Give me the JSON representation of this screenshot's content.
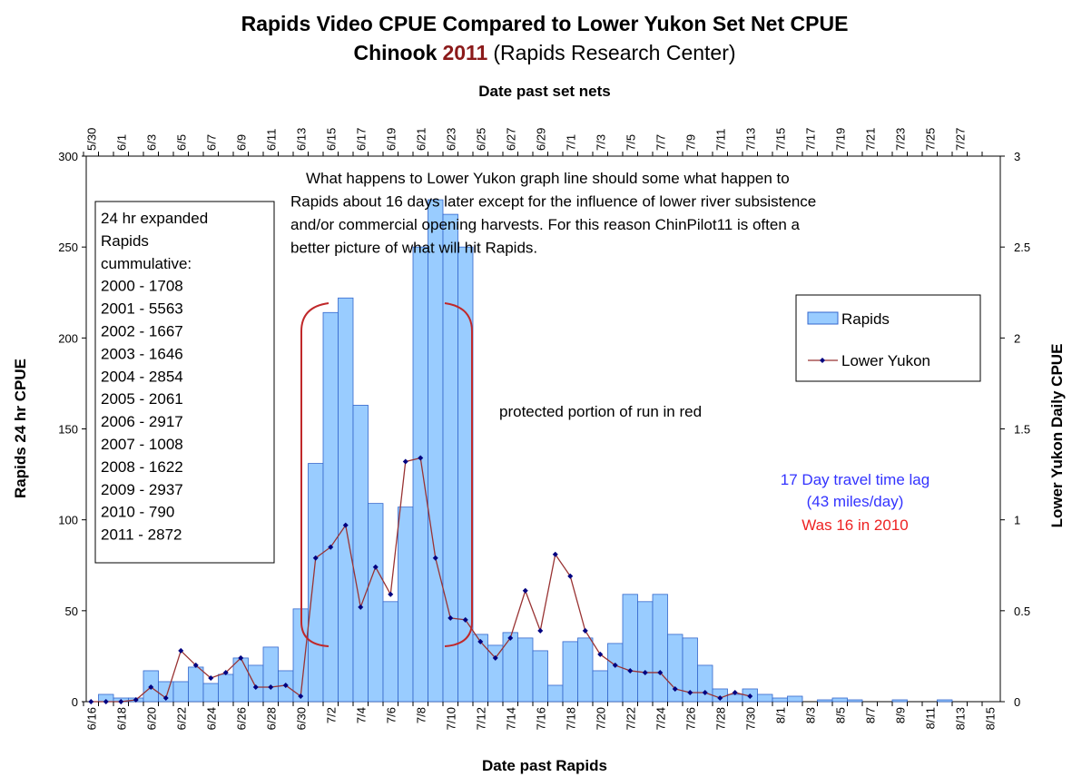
{
  "chart_data": {
    "type": "bar",
    "title": "Rapids Video CPUE Compared to Lower Yukon Set Net CPUE",
    "subtitle": [
      "Chinook",
      "2011",
      "(Rapids Research Center)"
    ],
    "xlabel": "Date past Rapids",
    "x2label": "Date past set nets",
    "ylabel": "Rapids 24 hr CPUE",
    "y2label": "Lower Yukon Daily CPUE",
    "categories": [
      "6/16",
      null,
      "6/18",
      null,
      "6/20",
      null,
      "6/22",
      null,
      "6/24",
      null,
      "6/26",
      null,
      "6/28",
      null,
      "6/30",
      null,
      "7/2",
      null,
      "7/4",
      null,
      "7/6",
      null,
      "7/8",
      null,
      "7/10",
      null,
      "7/12",
      null,
      "7/14",
      null,
      "7/16",
      null,
      "7/18",
      null,
      "7/20",
      null,
      "7/22",
      null,
      "7/24",
      null,
      "7/26",
      null,
      "7/28",
      null,
      "7/30",
      null,
      "8/1",
      null,
      "8/3",
      null,
      "8/5",
      null,
      "8/7",
      null,
      "8/9",
      null,
      "8/11",
      null,
      "8/13",
      null,
      "8/15"
    ],
    "x2_categories": [
      "5/30",
      null,
      "6/1",
      null,
      "6/3",
      null,
      "6/5",
      null,
      "6/7",
      null,
      "6/9",
      null,
      "6/11",
      null,
      "6/13",
      null,
      "6/15",
      null,
      "6/17",
      null,
      "6/19",
      null,
      "6/21",
      null,
      "6/23",
      null,
      "6/25",
      null,
      "6/27",
      null,
      "6/29",
      null,
      "7/1",
      null,
      "7/3",
      null,
      "7/5",
      null,
      "7/7",
      null,
      "7/9",
      null,
      "7/11",
      null,
      "7/13",
      null,
      "7/15",
      null,
      "7/17",
      null,
      "7/19",
      null,
      "7/21",
      null,
      "7/23",
      null,
      "7/25",
      null,
      "7/27",
      null,
      null
    ],
    "series": [
      {
        "name": "Rapids",
        "type": "bar",
        "color": "#99ccff",
        "edge_color": "#3366cc",
        "values": [
          0,
          4,
          2,
          2,
          17,
          11,
          11,
          19,
          10,
          15,
          24,
          20,
          30,
          17,
          51,
          131,
          214,
          222,
          163,
          109,
          55,
          107,
          250,
          276,
          268,
          250,
          37,
          31,
          38,
          35,
          28,
          9,
          33,
          35,
          17,
          32,
          59,
          55,
          59,
          37,
          35,
          20,
          7,
          4,
          7,
          4,
          2,
          3,
          0,
          1,
          2,
          1,
          0,
          0,
          1,
          0,
          0,
          1,
          0,
          0,
          0
        ]
      },
      {
        "name": "Lower Yukon",
        "type": "line",
        "axis": "y2",
        "color": "#993333",
        "marker_color": "#000080",
        "values": [
          0,
          0,
          0,
          0.01,
          0.08,
          0.02,
          0.28,
          0.2,
          0.13,
          0.16,
          0.24,
          0.08,
          0.08,
          0.09,
          0.03,
          0.79,
          0.85,
          0.97,
          0.52,
          0.74,
          0.59,
          1.32,
          1.34,
          0.79,
          0.46,
          0.45,
          0.33,
          0.24,
          0.35,
          0.61,
          0.39,
          0.81,
          0.69,
          0.39,
          0.26,
          0.2,
          0.17,
          0.16,
          0.16,
          0.07,
          0.05,
          0.05,
          0.02,
          0.05,
          0.03,
          null,
          null,
          null,
          null,
          null,
          null,
          null,
          null,
          null,
          null,
          null,
          null,
          null,
          null,
          null,
          null
        ]
      }
    ],
    "ylim": [
      0,
      300
    ],
    "yticks": [
      0,
      50,
      100,
      150,
      200,
      250,
      300
    ],
    "y2lim": [
      0,
      3
    ],
    "y2ticks": [
      0,
      0.5,
      1,
      1.5,
      2,
      2.5,
      3
    ],
    "legend": "upper right",
    "annotations": {
      "cumulative_box": [
        "24 hr expanded",
        "Rapids",
        "cummulative:",
        "2000 - 1708",
        "2001 - 5563",
        "2002 - 1667",
        "2003 - 1646",
        "2004 - 2854",
        "2005 - 2061",
        "2006 - 2917",
        "2007 - 1008",
        "2008 - 1622",
        "2009 - 2937",
        "2010 -  790",
        "2011 - 2872"
      ],
      "note": [
        "What happens to Lower Yukon  graph line should  some what happen to",
        "Rapids about 16 days later except for the influence  of lower river subsistence",
        "and/or  commercial opening harvests. For this reason ChinPilot11 is often a",
        "better picture of what will hit Rapids."
      ],
      "protected": "protected portion of run in  red",
      "travel_lag": [
        "17 Day travel time lag",
        "(43 miles/day)"
      ],
      "previous_lag": "Was 16 in 2010"
    }
  }
}
